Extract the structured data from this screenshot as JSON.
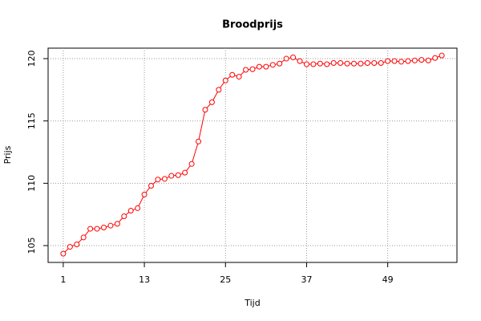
{
  "chart_data": {
    "type": "line",
    "title": "Broodprijs",
    "x_label": "Tijd",
    "y_label": "Prijs",
    "x": [
      1,
      2,
      3,
      4,
      5,
      6,
      7,
      8,
      9,
      10,
      11,
      12,
      13,
      14,
      15,
      16,
      17,
      18,
      19,
      20,
      21,
      22,
      23,
      24,
      25,
      26,
      27,
      28,
      29,
      30,
      31,
      32,
      33,
      34,
      35,
      36,
      37,
      38,
      39,
      40,
      41,
      42,
      43,
      44,
      45,
      46,
      47,
      48,
      49,
      50,
      51,
      52,
      53,
      54,
      55,
      56,
      57
    ],
    "values": [
      104.35,
      104.9,
      105.1,
      105.65,
      106.35,
      106.35,
      106.45,
      106.6,
      106.75,
      107.35,
      107.8,
      108.0,
      109.1,
      109.8,
      110.3,
      110.35,
      110.6,
      110.65,
      110.85,
      111.55,
      113.35,
      115.9,
      116.5,
      117.5,
      118.25,
      118.7,
      118.55,
      119.1,
      119.15,
      119.35,
      119.35,
      119.5,
      119.6,
      120.0,
      120.1,
      119.8,
      119.55,
      119.55,
      119.6,
      119.55,
      119.65,
      119.65,
      119.6,
      119.6,
      119.6,
      119.65,
      119.65,
      119.65,
      119.8,
      119.8,
      119.75,
      119.8,
      119.85,
      119.9,
      119.85,
      120.05,
      120.25
    ],
    "color": "#ff0000",
    "xlim": [
      -1.24,
      59.24
    ],
    "xticks": [
      1,
      13,
      25,
      37,
      49
    ],
    "ylim": [
      103.65,
      120.84
    ],
    "yticks": [
      105,
      110,
      115,
      120
    ],
    "grid": true
  }
}
